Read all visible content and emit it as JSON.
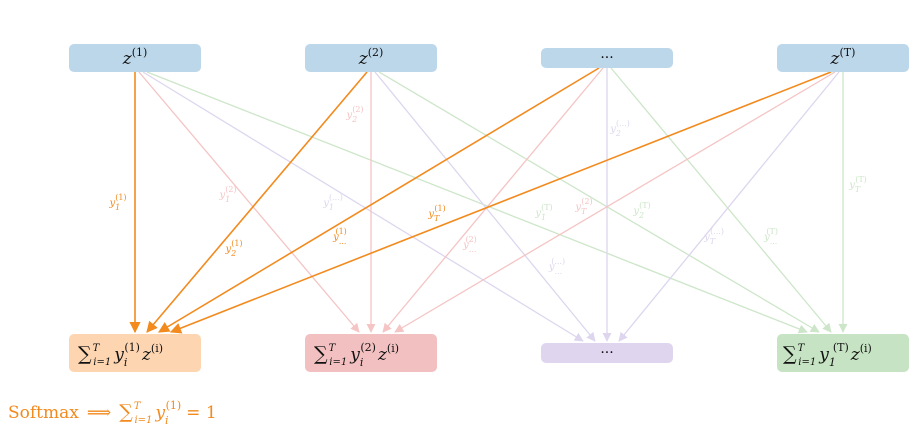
{
  "colors": {
    "top_box": "#bdd7ea",
    "out_box_1": "#fdd5b1",
    "out_box_2": "#f2c0c0",
    "out_box_3": "#e0d5ee",
    "out_box_4": "#c6e3c3",
    "orange": "#f28a1e",
    "red": "#f5c4c4",
    "purple": "#ddd6ee",
    "green": "#cde6c9"
  },
  "top_nodes": [
    {
      "var": "z",
      "sup": "(1)"
    },
    {
      "var": "z",
      "sup": "(2)"
    },
    {
      "var": "···",
      "sup": ""
    },
    {
      "var": "z",
      "sup": "(T)"
    }
  ],
  "bottom_nodes": [
    {
      "lead": "∑",
      "lower": "i=1",
      "upper": "T",
      "y": "y",
      "ysub": "i",
      "ysup": "(1)",
      "z": "z",
      "zsup": "(i)"
    },
    {
      "lead": "∑",
      "lower": "i=1",
      "upper": "T",
      "y": "y",
      "ysub": "i",
      "ysup": "(2)",
      "z": "z",
      "zsup": "(i)"
    },
    {
      "text": "···"
    },
    {
      "lead": "∑",
      "lower": "i=1",
      "upper": "T",
      "y": "y",
      "ysub": "1",
      "ysup": "(T)",
      "z": "z",
      "zsup": "(i)"
    }
  ],
  "edge_labels": [
    {
      "sub": "1",
      "sup": "(1)",
      "color": "orange"
    },
    {
      "sub": "2",
      "sup": "(1)",
      "color": "orange"
    },
    {
      "sub": "...",
      "sup": "(1)",
      "color": "orange"
    },
    {
      "sub": "T",
      "sup": "(1)",
      "color": "orange"
    },
    {
      "sub": "2",
      "sup": "(2)",
      "color": "red"
    },
    {
      "sub": "1",
      "sup": "(2)",
      "color": "red"
    },
    {
      "sub": "...",
      "sup": "(2)",
      "color": "red"
    },
    {
      "sub": "T",
      "sup": "(2)",
      "color": "red"
    },
    {
      "sub": "2",
      "sup": "(...)",
      "color": "purple"
    },
    {
      "sub": "1",
      "sup": "(...)",
      "color": "purple"
    },
    {
      "sub": "...",
      "sup": "(...)",
      "color": "purple"
    },
    {
      "sub": "T",
      "sup": "(...)",
      "color": "purple"
    },
    {
      "sub": "1",
      "sup": "(T)",
      "color": "green"
    },
    {
      "sub": "2",
      "sup": "(T)",
      "color": "green"
    },
    {
      "sub": "T",
      "sup": "(T)",
      "color": "green"
    },
    {
      "sub": "...",
      "sup": "(T)",
      "color": "green"
    }
  ],
  "footer": {
    "word": "Softmax",
    "arrow": "⟹",
    "sum": "∑",
    "lower": "i=1",
    "upper": "T",
    "y": "y",
    "ysub": "i",
    "ysup": "(1)",
    "rhs": "= 1"
  }
}
